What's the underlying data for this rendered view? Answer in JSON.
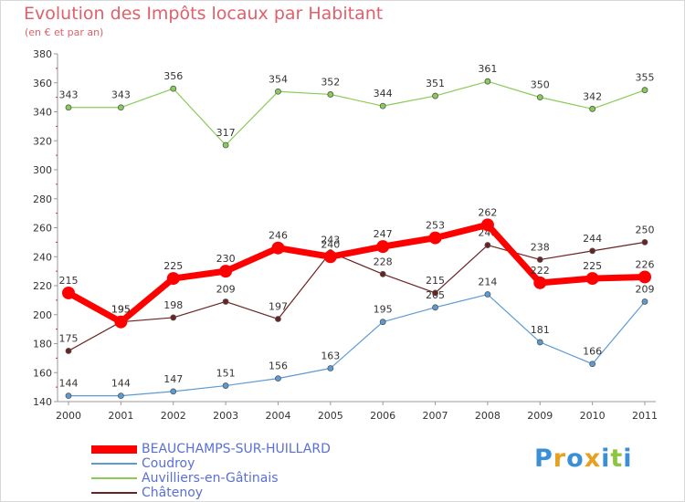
{
  "title": "Evolution des Impôts locaux par Habitant",
  "subtitle": "(en € et par an)",
  "logo": {
    "letters": [
      "P",
      "r",
      "o",
      "x",
      "i",
      "t",
      "i"
    ],
    "colors": [
      "#3a8fd6",
      "#e8a020",
      "#3a8fd6",
      "#e8a020",
      "#3a8fd6",
      "#8cc63f",
      "#3a8fd6"
    ]
  },
  "chart_data": {
    "type": "line",
    "x": [
      "2000",
      "2001",
      "2002",
      "2003",
      "2004",
      "2005",
      "2006",
      "2007",
      "2008",
      "2009",
      "2010",
      "2011"
    ],
    "ylim": [
      140,
      380
    ],
    "yticks": [
      140,
      160,
      180,
      200,
      220,
      240,
      260,
      280,
      300,
      320,
      340,
      360,
      380
    ],
    "grid": false,
    "legend": "bottom-left",
    "series": [
      {
        "name": "Auvilliers-en-Gâtinais",
        "color": "#88cc55",
        "values": [
          343,
          343,
          356,
          317,
          354,
          352,
          344,
          351,
          361,
          350,
          342,
          355
        ]
      },
      {
        "name": "Coudroy",
        "color": "#5b9bd5",
        "values": [
          144,
          144,
          147,
          151,
          156,
          163,
          195,
          205,
          214,
          181,
          166,
          209
        ]
      },
      {
        "name": "Châtenoy",
        "color": "#6b2222",
        "values": [
          175,
          195,
          198,
          209,
          197,
          243,
          228,
          215,
          248,
          238,
          244,
          250
        ]
      },
      {
        "name": "BEAUCHAMPS-SUR-HUILLARD",
        "color": "#ff0000",
        "values": [
          215,
          195,
          225,
          230,
          246,
          240,
          247,
          253,
          262,
          222,
          225,
          226
        ]
      }
    ],
    "legend_order": [
      "BEAUCHAMPS-SUR-HUILLARD",
      "Coudroy",
      "Auvilliers-en-Gâtinais",
      "Châtenoy"
    ]
  }
}
